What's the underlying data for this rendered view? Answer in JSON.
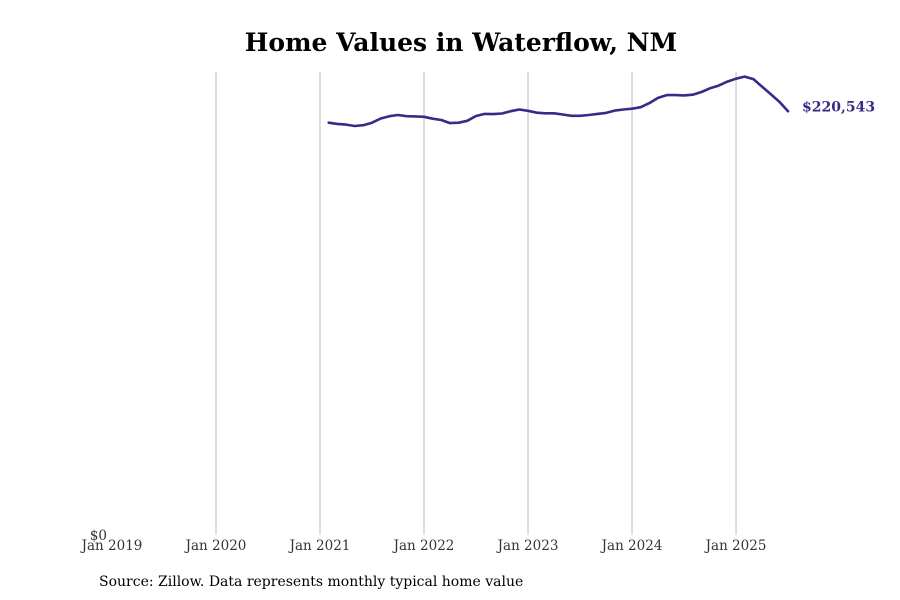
{
  "title": "Home Values in Waterflow, NM",
  "source": "Source: Zillow. Data represents monthly typical home value",
  "colors": {
    "line": "#352d85",
    "grid": "#bdbdbd",
    "tick_text": "#333333",
    "label": "#352d85"
  },
  "chart_data": {
    "type": "line",
    "title": "Home Values in Waterflow, NM",
    "xlabel": "",
    "ylabel": "",
    "x_ticks": [
      "Jan 2019",
      "Jan 2020",
      "Jan 2021",
      "Jan 2022",
      "Jan 2023",
      "Jan 2024",
      "Jan 2025"
    ],
    "y_ticks": [
      "$0"
    ],
    "xlim": [
      "2019-01",
      "2025-12"
    ],
    "ylim": [
      0,
      241000
    ],
    "grid": "vertical",
    "series": [
      {
        "end_label": "$220,543",
        "x": [
          "2021-02",
          "2021-03",
          "2021-04",
          "2021-05",
          "2021-06",
          "2021-07",
          "2021-08",
          "2021-09",
          "2021-10",
          "2021-11",
          "2021-12",
          "2022-01",
          "2022-02",
          "2022-03",
          "2022-04",
          "2022-05",
          "2022-06",
          "2022-07",
          "2022-08",
          "2022-09",
          "2022-10",
          "2022-11",
          "2022-12",
          "2023-01",
          "2023-02",
          "2023-03",
          "2023-04",
          "2023-05",
          "2023-06",
          "2023-07",
          "2023-08",
          "2023-09",
          "2023-10",
          "2023-11",
          "2023-12",
          "2024-01",
          "2024-02",
          "2024-03",
          "2024-04",
          "2024-05",
          "2024-06",
          "2024-07",
          "2024-08",
          "2024-09",
          "2024-10",
          "2024-11",
          "2024-12",
          "2025-01",
          "2025-02",
          "2025-03",
          "2025-04",
          "2025-05",
          "2025-06",
          "2025-07"
        ],
        "y": [
          214600,
          214000,
          213600,
          212900,
          213300,
          214600,
          216800,
          218000,
          218600,
          218000,
          217900,
          217700,
          216700,
          216000,
          214400,
          214600,
          215600,
          218100,
          219200,
          219100,
          219400,
          220600,
          221500,
          220800,
          219800,
          219500,
          219500,
          218900,
          218200,
          218200,
          218600,
          219200,
          219700,
          220900,
          221500,
          221900,
          222700,
          224800,
          227500,
          229000,
          229000,
          228800,
          229200,
          230600,
          232500,
          233900,
          236000,
          237500,
          238600,
          237300,
          233400,
          229500,
          225500,
          220543
        ]
      }
    ]
  }
}
